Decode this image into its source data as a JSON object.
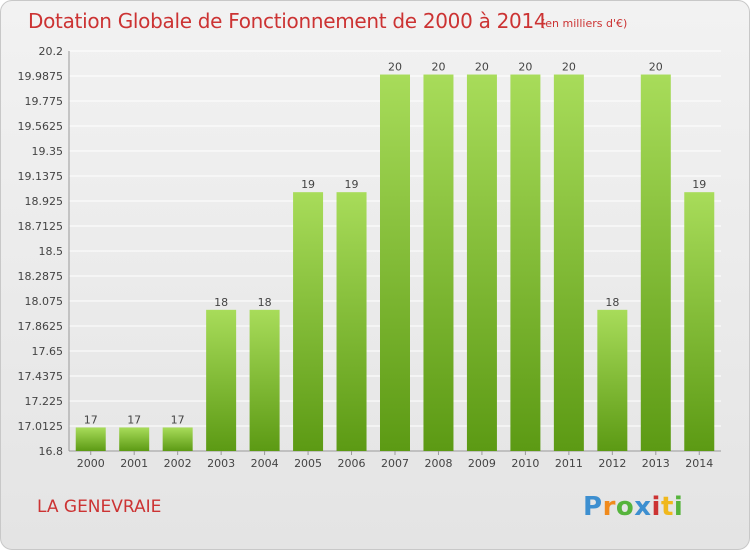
{
  "header": {
    "title": "Dotation Globale de Fonctionnement de 2000 à 2014",
    "subtitle": "(en milliers d'€)"
  },
  "footer": {
    "commune": "LA GENEVRAIE",
    "logo_text": "Proxiti"
  },
  "colors": {
    "title": "#cc3333",
    "bar_light": "#a8dc5a",
    "bar_dark": "#5c9a14",
    "grid": "#ffffff",
    "text": "#444444"
  },
  "chart_data": {
    "type": "bar",
    "title": "Dotation Globale de Fonctionnement de 2000 à 2014",
    "categories": [
      "2000",
      "2001",
      "2002",
      "2003",
      "2004",
      "2005",
      "2006",
      "2007",
      "2008",
      "2009",
      "2010",
      "2011",
      "2012",
      "2013",
      "2014"
    ],
    "values": [
      17,
      17,
      17,
      18,
      18,
      19,
      19,
      20,
      20,
      20,
      20,
      20,
      18,
      20,
      19
    ],
    "data_labels": [
      "17",
      "17",
      "17",
      "18",
      "18",
      "19",
      "19",
      "20",
      "20",
      "20",
      "20",
      "20",
      "18",
      "20",
      "19"
    ],
    "ylim": [
      16.8,
      20.2
    ],
    "yticks": [
      16.8,
      17.0125,
      17.225,
      17.4375,
      17.65,
      17.8625,
      18.075,
      18.2875,
      18.5,
      18.7125,
      18.925,
      19.1375,
      19.35,
      19.5625,
      19.775,
      19.9875,
      20.2
    ],
    "ytick_labels": [
      "16.8",
      "17.0125",
      "17.225",
      "17.4375",
      "17.65",
      "17.8625",
      "18.075",
      "18.2875",
      "18.5",
      "18.7125",
      "18.925",
      "19.1375",
      "19.35",
      "19.5625",
      "19.775",
      "19.9875",
      "20.2"
    ],
    "grid": true,
    "xlabel": "",
    "ylabel": ""
  }
}
